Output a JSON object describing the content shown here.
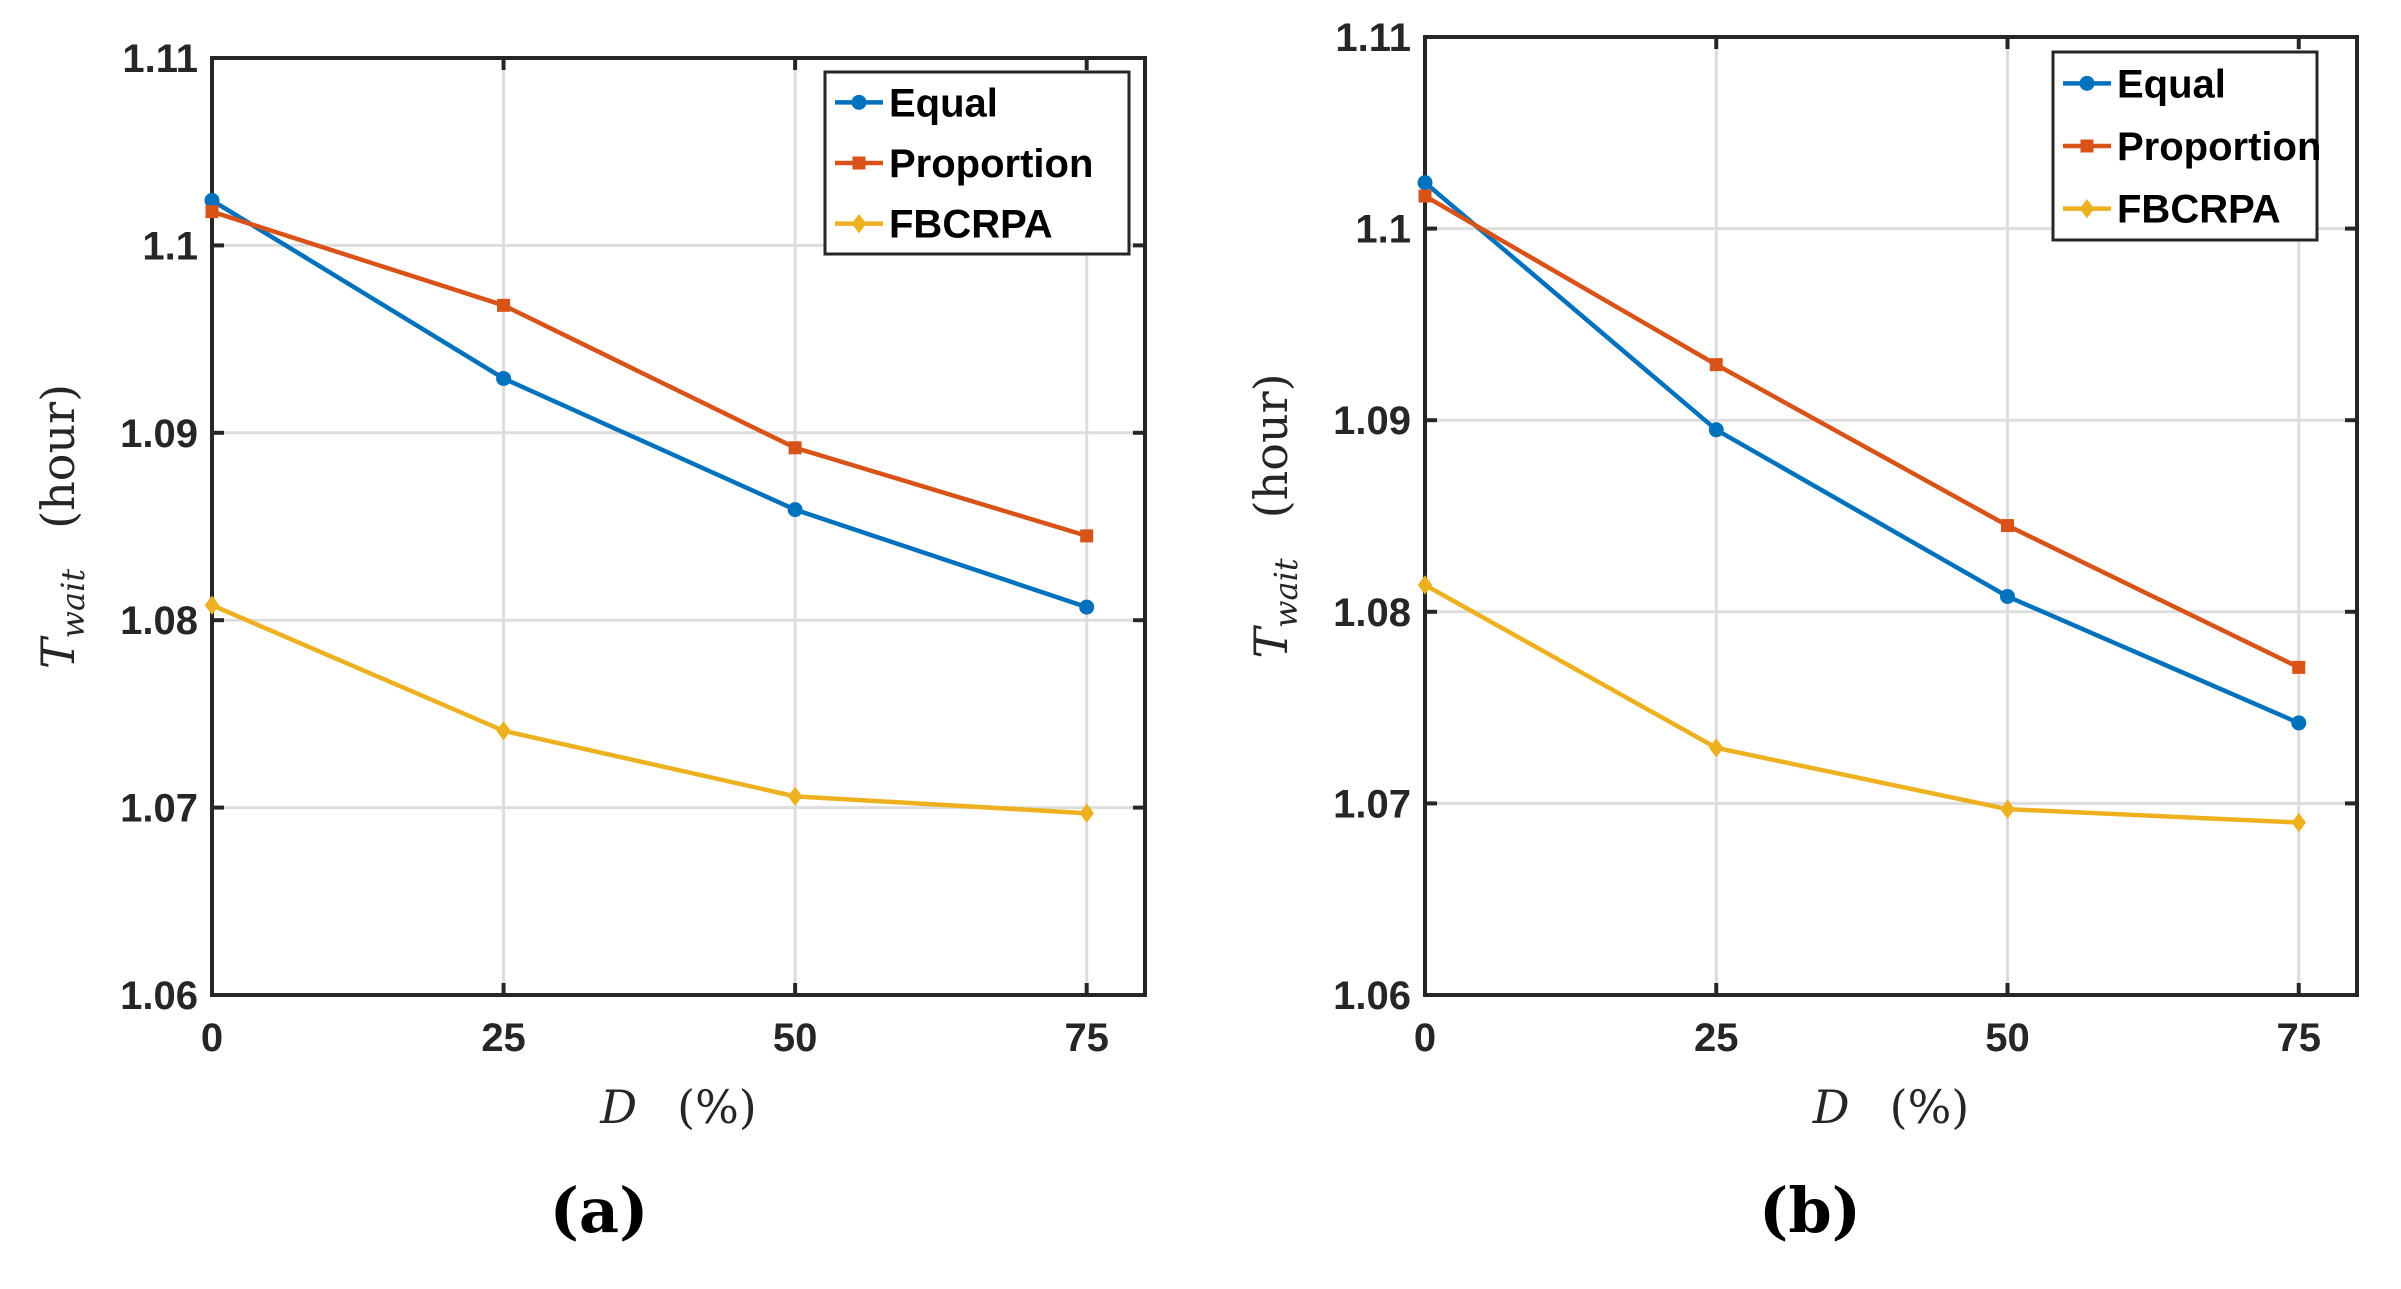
{
  "chart_data": [
    {
      "type": "line",
      "panel_label": "(a)",
      "x": [
        0,
        25,
        50,
        75
      ],
      "xticks": [
        "0",
        "25",
        "50",
        "75"
      ],
      "xlim": [
        0,
        80
      ],
      "ylim": [
        1.06,
        1.11
      ],
      "yticks": [
        "1.06",
        "1.07",
        "1.08",
        "1.09",
        "1.1",
        "1.11"
      ],
      "ytick_values": [
        1.06,
        1.07,
        1.08,
        1.09,
        1.1,
        1.11
      ],
      "xlabel": {
        "symbol": "D",
        "unit": "(%)"
      },
      "ylabel": {
        "symbol": "T",
        "subscript": "wait",
        "unit": "(hour)"
      },
      "grid": true,
      "legend_position": "top-right",
      "series": [
        {
          "name": "Equal",
          "color": "#0072BD",
          "marker": "circle",
          "values": [
            1.1024,
            1.0929,
            1.0859,
            1.0807
          ]
        },
        {
          "name": "Proportion",
          "color": "#D95319",
          "marker": "square",
          "values": [
            1.1018,
            1.0968,
            1.0892,
            1.0845
          ]
        },
        {
          "name": "FBCRPA",
          "color": "#EDB120",
          "marker": "diamond",
          "values": [
            1.0808,
            1.0741,
            1.0706,
            1.0697
          ]
        }
      ]
    },
    {
      "type": "line",
      "panel_label": "(b)",
      "x": [
        0,
        25,
        50,
        75
      ],
      "xticks": [
        "0",
        "25",
        "50",
        "75"
      ],
      "xlim": [
        0,
        80
      ],
      "ylim": [
        1.06,
        1.11
      ],
      "yticks": [
        "1.06",
        "1.07",
        "1.08",
        "1.09",
        "1.1",
        "1.11"
      ],
      "ytick_values": [
        1.06,
        1.07,
        1.08,
        1.09,
        1.1,
        1.11
      ],
      "xlabel": {
        "symbol": "D",
        "unit": "(%)"
      },
      "ylabel": {
        "symbol": "T",
        "subscript": "wait",
        "unit": "(hour)"
      },
      "grid": true,
      "legend_position": "top-right",
      "series": [
        {
          "name": "Equal",
          "color": "#0072BD",
          "marker": "circle",
          "values": [
            1.1024,
            1.0895,
            1.0808,
            1.0742
          ]
        },
        {
          "name": "Proportion",
          "color": "#D95319",
          "marker": "square",
          "values": [
            1.1017,
            1.0929,
            1.0845,
            1.0771
          ]
        },
        {
          "name": "FBCRPA",
          "color": "#EDB120",
          "marker": "diamond",
          "values": [
            1.0814,
            1.0729,
            1.0697,
            1.069
          ]
        }
      ]
    }
  ]
}
